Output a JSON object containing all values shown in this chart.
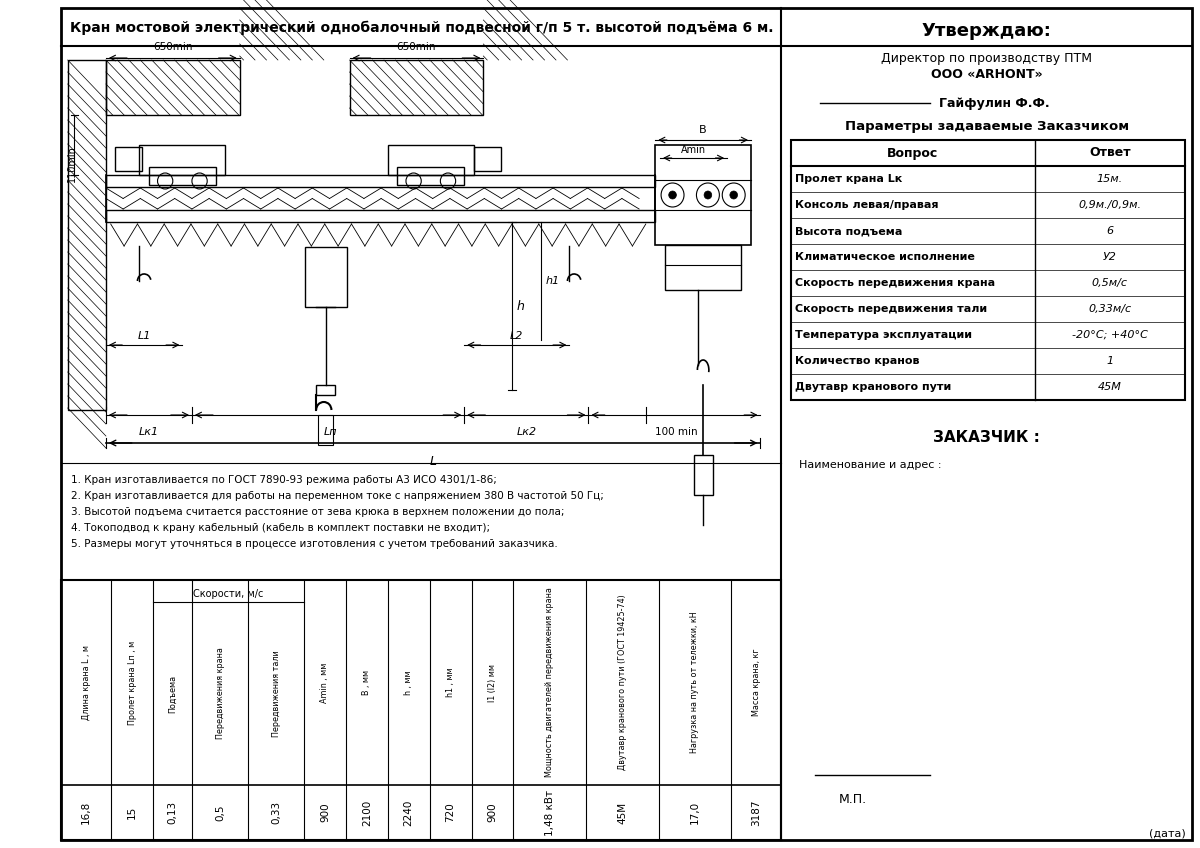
{
  "title": "Кран мостовой электрический однобалочный подвесной г/п 5 т. высотой подъёма 6 м.",
  "approve_title": "Утверждаю:",
  "approve_line1": "Директор по производству ПТМ",
  "approve_line2": "ООО «ARHONT»",
  "approve_line3": "Гайфулин Ф.Ф.",
  "params_title": "Параметры задаваемые Заказчиком",
  "params_header": [
    "Вопрос",
    "Ответ"
  ],
  "params_rows": [
    [
      "Пролет крана Lк",
      "15м."
    ],
    [
      "Консоль левая/правая",
      "0,9м./0,9м."
    ],
    [
      "Высота подъема",
      "6"
    ],
    [
      "Климатическое исполнение",
      "У2"
    ],
    [
      "Скорость передвижения крана",
      "0,5м/с"
    ],
    [
      "Скорость передвижения тали",
      "0,33м/с"
    ],
    [
      "Температура эксплуатации",
      "-20°С; +40°С"
    ],
    [
      "Количество кранов",
      "1"
    ],
    [
      "Двутавр кранового пути",
      "45М"
    ]
  ],
  "client_title": "ЗАКАЗЧИК :",
  "client_line": "Наименование и адрес :",
  "mp_text": "М.П.",
  "date_text": "(дата)",
  "notes": [
    "1. Кран изготавливается по ГОСТ 7890-93 режима работы А3 ИСО 4301/1-86;",
    "2. Кран изготавливается для работы на переменном токе с напряжением 380 В частотой 50 Гц;",
    "3. Высотой подъема считается расстояние от зева крюка в верхнем положении до пола;",
    "4. Токоподвод к крану кабельный (кабель в комплект поставки не входит);",
    "5. Размеры могут уточняться в процессе изготовления с учетом требований заказчика."
  ],
  "bottom_table_values": [
    "16,8",
    "15",
    "0,13",
    "0,5",
    "0,33",
    "900",
    "2100",
    "2240",
    "720",
    "900",
    "1,48 кВт",
    "45М",
    "17,0",
    "3187"
  ],
  "speed_header": "Скорости, м/с",
  "col_headers": [
    "Длина крана L , м",
    "Пролет крана Lп , м",
    "Подъема",
    "Передвижения крана",
    "Передвижения тали",
    "Amin , мм",
    "B , мм",
    "h , мм",
    "h1 , мм",
    "l1 (l2) мм",
    "Мощность двигателей передвижения крана",
    "Двутавр кранового пути (ГОСТ 19425-74)",
    "Нагрузка на путь от тележки, кН",
    "Масса крана, кг"
  ],
  "bg_color": "#ffffff"
}
